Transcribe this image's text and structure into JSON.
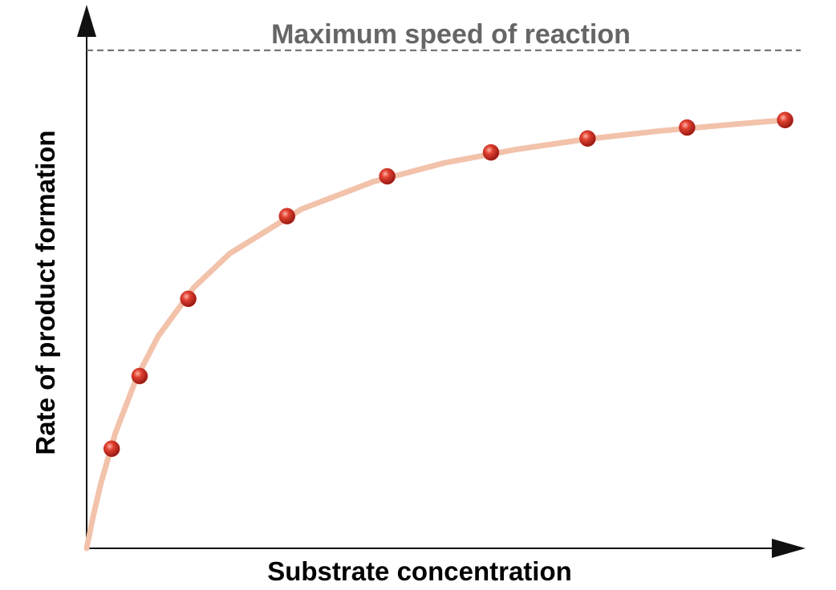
{
  "chart_data": {
    "type": "scatter",
    "x_label": "Substrate concentration",
    "y_label": "Rate of product formation",
    "max_line": {
      "label": "Maximum speed of reaction",
      "value": 100,
      "color": "#666666"
    },
    "xlim": [
      0,
      100
    ],
    "ylim": [
      0,
      108.5
    ],
    "x": [
      3.5,
      7.4,
      14.2,
      28.0,
      42.0,
      56.5,
      70.0,
      83.9,
      97.6
    ],
    "values": [
      20.0,
      34.6,
      50.1,
      66.7,
      74.7,
      79.5,
      82.3,
      84.5,
      86.0
    ],
    "color": "#cc2a22",
    "curve": {
      "color": "#f2c2ab",
      "x": [
        0,
        0.5,
        1,
        2,
        4,
        7,
        10,
        15,
        20,
        30,
        40,
        50,
        60,
        70,
        80,
        90,
        97.6
      ],
      "values": [
        0,
        3.6,
        7.0,
        13.1,
        23.1,
        34.3,
        42.6,
        52.4,
        59.2,
        68.1,
        73.6,
        77.4,
        80.1,
        82.2,
        83.8,
        85.1,
        86.0
      ]
    }
  }
}
